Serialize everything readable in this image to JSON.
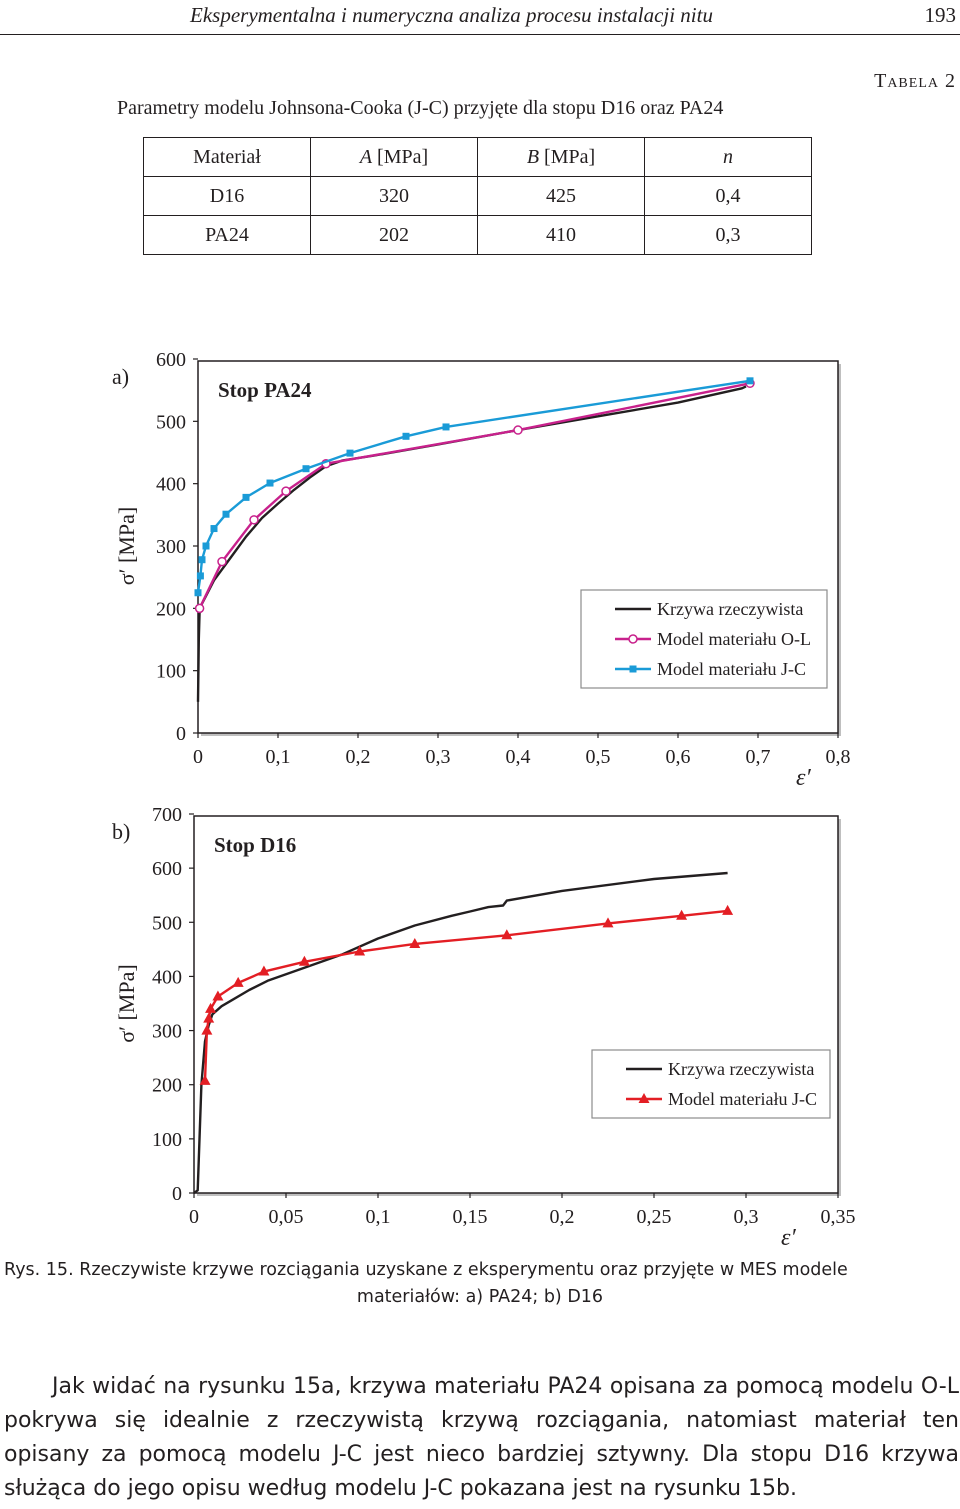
{
  "header": {
    "running_title": "Eksperymentalna i numeryczna analiza procesu instalacji nitu",
    "page_number": "193"
  },
  "table": {
    "label": "Tabela 2",
    "caption": "Parametry modelu Johnsona-Cooka (J-C) przyjęte dla stopu D16 oraz PA24",
    "headers": [
      "Materiał",
      "A",
      "[MPa]",
      "B",
      "[MPa]",
      "n"
    ],
    "rows": [
      [
        "D16",
        "320",
        "425",
        "0,4"
      ],
      [
        "PA24",
        "202",
        "410",
        "0,3"
      ]
    ]
  },
  "chart_data": [
    {
      "type": "line",
      "panel": "a)",
      "title": "Stop PA24",
      "ylabel": "σ′ [MPa]",
      "xlabel": "ε′",
      "xlim": [
        0,
        0.8
      ],
      "ylim": [
        0,
        600
      ],
      "x_ticks": [
        "0",
        "0,1",
        "0,2",
        "0,3",
        "0,4",
        "0,5",
        "0,6",
        "0,7",
        "0,8"
      ],
      "y_ticks": [
        "0",
        "100",
        "200",
        "300",
        "400",
        "500",
        "600"
      ],
      "legend_position": "right, lower half",
      "series": [
        {
          "name": "Krzywa rzeczywista",
          "color": "#231f20",
          "marker": "none",
          "points": [
            [
              0.0,
              50
            ],
            [
              0.001,
              150
            ],
            [
              0.002,
              195
            ],
            [
              0.004,
              205
            ],
            [
              0.01,
              220
            ],
            [
              0.02,
              245
            ],
            [
              0.04,
              280
            ],
            [
              0.06,
              315
            ],
            [
              0.08,
              345
            ],
            [
              0.1,
              368
            ],
            [
              0.12,
              390
            ],
            [
              0.14,
              410
            ],
            [
              0.16,
              428
            ],
            [
              0.18,
              437
            ],
            [
              0.22,
              445
            ],
            [
              0.3,
              463
            ],
            [
              0.4,
              486
            ],
            [
              0.5,
              508
            ],
            [
              0.6,
              530
            ],
            [
              0.68,
              553
            ],
            [
              0.685,
              556
            ]
          ]
        },
        {
          "name": "Model materiału O-L",
          "color": "#c8218c",
          "marker": "circle",
          "points": [
            [
              0.002,
              200
            ],
            [
              0.03,
              275
            ],
            [
              0.07,
              342
            ],
            [
              0.11,
              388
            ],
            [
              0.16,
              432
            ],
            [
              0.4,
              486
            ],
            [
              0.69,
              561
            ]
          ]
        },
        {
          "name": "Model materiału J-C",
          "color": "#1a9bd7",
          "marker": "square",
          "points": [
            [
              0.0,
              225
            ],
            [
              0.003,
              252
            ],
            [
              0.005,
              278
            ],
            [
              0.01,
              300
            ],
            [
              0.02,
              328
            ],
            [
              0.035,
              351
            ],
            [
              0.06,
              378
            ],
            [
              0.09,
              401
            ],
            [
              0.135,
              424
            ],
            [
              0.19,
              449
            ],
            [
              0.26,
              476
            ],
            [
              0.31,
              491
            ],
            [
              0.69,
              565
            ]
          ]
        }
      ]
    },
    {
      "type": "line",
      "panel": "b)",
      "title": "Stop D16",
      "ylabel": "σ′ [MPa]",
      "xlabel": "ε′",
      "xlim": [
        0,
        0.35
      ],
      "ylim": [
        0,
        700
      ],
      "x_ticks": [
        "0",
        "0,05",
        "0,1",
        "0,15",
        "0,2",
        "0,25",
        "0,3",
        "0,35"
      ],
      "y_ticks": [
        "0",
        "100",
        "200",
        "300",
        "400",
        "500",
        "600",
        "700"
      ],
      "legend_position": "right, lower half",
      "series": [
        {
          "name": "Krzywa rzeczywista",
          "color": "#231f20",
          "marker": "none",
          "points": [
            [
              0.0,
              0
            ],
            [
              0.002,
              5
            ],
            [
              0.003,
              100
            ],
            [
              0.004,
              200
            ],
            [
              0.006,
              280
            ],
            [
              0.008,
              310
            ],
            [
              0.01,
              330
            ],
            [
              0.015,
              345
            ],
            [
              0.02,
              355
            ],
            [
              0.03,
              375
            ],
            [
              0.04,
              392
            ],
            [
              0.06,
              416
            ],
            [
              0.08,
              440
            ],
            [
              0.1,
              470
            ],
            [
              0.12,
              494
            ],
            [
              0.14,
              512
            ],
            [
              0.15,
              520
            ],
            [
              0.16,
              528
            ],
            [
              0.168,
              531
            ],
            [
              0.17,
              540
            ],
            [
              0.2,
              558
            ],
            [
              0.25,
              580
            ],
            [
              0.29,
              591
            ]
          ]
        },
        {
          "name": "Model materiału J-C",
          "color": "#e31e24",
          "marker": "triangle",
          "points": [
            [
              0.006,
              207
            ],
            [
              0.007,
              300
            ],
            [
              0.008,
              322
            ],
            [
              0.009,
              340
            ],
            [
              0.013,
              363
            ],
            [
              0.024,
              388
            ],
            [
              0.038,
              409
            ],
            [
              0.06,
              427
            ],
            [
              0.09,
              446
            ],
            [
              0.12,
              460
            ],
            [
              0.17,
              476
            ],
            [
              0.225,
              498
            ],
            [
              0.265,
              512
            ],
            [
              0.29,
              521
            ]
          ]
        }
      ]
    }
  ],
  "figure_caption": {
    "line1": "Rys. 15. Rzeczywiste krzywe rozciągania uzyskane z eksperymentu oraz przyjęte w MES modele",
    "line2": "materiałów: a) PA24; b) D16"
  },
  "body_text": "Jak widać na rysunku 15a, krzywa materiału PA24 opisana za pomocą modelu O-L pokrywa się idealnie z rzeczywistą krzywą rozciągania, natomiast materiał ten opisany za pomocą modelu J-C jest nieco bardziej sztywny. Dla stopu D16 krzywa służąca do jego opisu według modelu J-C pokazana jest na rysunku 15b."
}
